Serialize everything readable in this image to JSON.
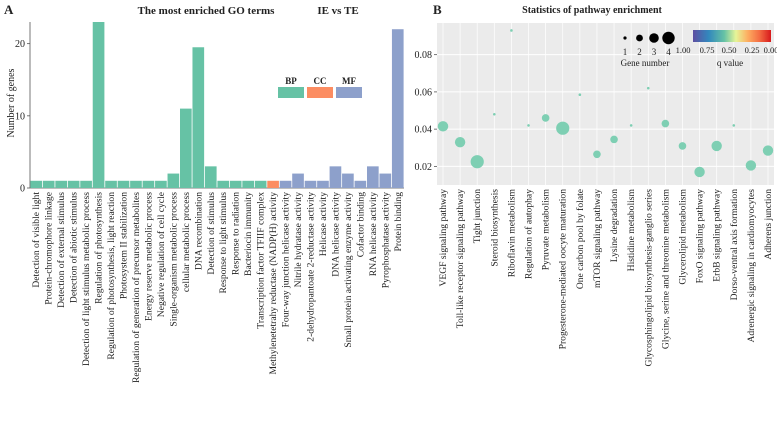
{
  "chart_data": [
    {
      "type": "bar",
      "panel_letter": "A",
      "title": "The most enriched GO terms",
      "comparison": "IE vs TE",
      "ylabel": "Number of genes",
      "ylim": [
        0,
        23
      ],
      "yticks": [
        0,
        10,
        20
      ],
      "legend": [
        {
          "name": "BP",
          "color": "#66c2a5"
        },
        {
          "name": "CC",
          "color": "#fc8d62"
        },
        {
          "name": "MF",
          "color": "#8da0cb"
        }
      ],
      "categories": [
        "Detection of visible light",
        "Protein-chromophore linkage",
        "Detection of external stimulus",
        "Detection of abiotic stimulus",
        "Detection of light stimulus metabolic process",
        "Regulation of photosynthesis",
        "Regulation of photosynthesis, light reaction",
        "Photosystem II stabilization",
        "Regulation of generation of precursor metabolites",
        "Energy reserve metabolic process",
        "Negative regulation of cell cycle",
        "Single-organism metabolic process",
        "cellular metabolic process",
        "DNA recombination",
        "Detection of stimulus",
        "Response to light stimulus",
        "Response to radiation",
        "Bacteriocin immunity",
        "Transcription factor TFIIF complex",
        "Methylenetetrahy reductase (NADP(H) activity",
        "Four-way junction helicase activity",
        "Nitrile hydratase activity",
        "2-dehydropantoate 2-reductase activity",
        "Helicase activity",
        "DNA helicase activity",
        "Small protein activating enzyme activity",
        "Cofactor binding",
        "RNA helicase activity",
        "Pyrophosphatase activity",
        "Protein binding"
      ],
      "values": [
        1,
        1,
        1,
        1,
        1,
        23,
        1,
        1,
        1,
        1,
        1,
        2,
        11,
        19.5,
        3,
        1,
        1,
        1,
        1,
        1,
        1,
        2,
        1,
        1,
        3,
        2,
        1,
        3,
        2,
        22
      ],
      "groups": [
        "BP",
        "BP",
        "BP",
        "BP",
        "BP",
        "BP",
        "BP",
        "BP",
        "BP",
        "BP",
        "BP",
        "BP",
        "BP",
        "BP",
        "BP",
        "BP",
        "BP",
        "BP",
        "BP",
        "CC",
        "MF",
        "MF",
        "MF",
        "MF",
        "MF",
        "MF",
        "MF",
        "MF",
        "MF",
        "MF"
      ]
    },
    {
      "type": "scatter",
      "panel_letter": "B",
      "title": "Statistics of pathway enrichment",
      "xlabel": "",
      "ylabel": "",
      "ylim": [
        0.01,
        0.097
      ],
      "yticks": [
        0.02,
        0.04,
        0.06,
        0.08
      ],
      "ytick_labels": [
        "0.02",
        "0.04",
        "0.06",
        "0.08"
      ],
      "size_legend_title": "Gene number",
      "size_legend": [
        1,
        2,
        3,
        4
      ],
      "color_legend_title": "q value",
      "color_legend_ticks": [
        "1.00",
        "0.75",
        "0.50",
        "0.25",
        "0.00"
      ],
      "categories": [
        "VEGF signaling pathway",
        "Toll-like receptor signaling pathway",
        "Tight junction",
        "Steroid biosynthesis",
        "Riboflavin metabolism",
        "Regulation of autophay",
        "Pyruvate metabolism",
        "Progesterone-mediated oocyte maturation",
        "One carbon pool by folate",
        "mTOR signaling pathway",
        "Lysine degradation",
        "Histidine metabolism",
        "Glycosphingolipid biosynthesis-ganglio series",
        "Glycine, serine and threonine metabolism",
        "Glycerolipid metabolism",
        "FoxO signaling pathway",
        "ErbB signaling pathway",
        "Dorso-ventral axis formation",
        "Adrenergic signaling in cardiomyocytes",
        "Adherens junction"
      ],
      "y": [
        0.0415,
        0.033,
        0.0225,
        0.048,
        0.093,
        0.042,
        0.046,
        0.0405,
        0.0585,
        0.0265,
        0.0345,
        0.042,
        0.062,
        0.043,
        0.031,
        0.017,
        0.031,
        0.042,
        0.0205,
        0.0285
      ],
      "gene_number": [
        3,
        3,
        4,
        1,
        1,
        1,
        2,
        4,
        1,
        2,
        2,
        1,
        1,
        2,
        2,
        3,
        3,
        1,
        3,
        3
      ],
      "point_color": "#7ecfb3"
    }
  ]
}
